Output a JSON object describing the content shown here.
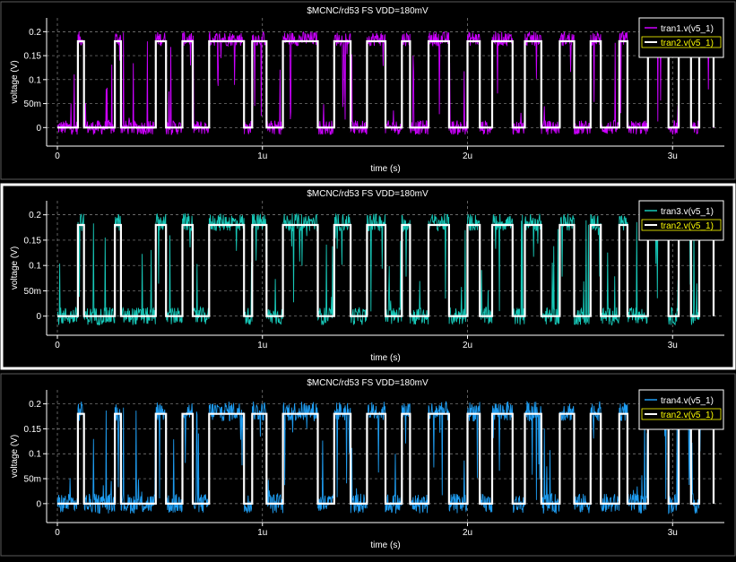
{
  "colors": {
    "background": "#000000",
    "axis": "#ffffff",
    "grid": "#8a8a8a",
    "selected_frame": "#ffffff",
    "frame": "#5a5a5a",
    "reference_trace": "#ffffff",
    "reference_legend_text": "#ffff00"
  },
  "chart_data": [
    {
      "type": "line",
      "title": "$MCNC/rd53 FS VDD=180mV",
      "xlabel": "time (s)",
      "ylabel": "voltage (V)",
      "xlim": [
        0,
        3.2e-06
      ],
      "ylim": [
        -0.02,
        0.21
      ],
      "x_ticks": [
        0,
        1e-06,
        2e-06,
        3e-06
      ],
      "x_tick_labels": [
        "0",
        "1u",
        "2u",
        "3u"
      ],
      "y_ticks": [
        0,
        0.05,
        0.1,
        0.15,
        0.2
      ],
      "y_tick_labels": [
        "0",
        "50m",
        "0.1",
        "0.15",
        "0.2"
      ],
      "grid": true,
      "legend_position": "top-right",
      "selected": false,
      "series": [
        {
          "name": "tran1.v(v5_1)",
          "color": "#cc00ff",
          "style": "noisy",
          "noise_amplitude": 0.03,
          "description_values": "noisy digital waveform switching between ~0 and ~0.19 V, same transitions as tran2"
        },
        {
          "name": "tran2.v(v5_1)",
          "color": "#ffffff",
          "style": "square",
          "high": 0.18,
          "low": 0,
          "transitions_us": [
            0.1,
            0.13,
            0.28,
            0.31,
            0.48,
            0.53,
            0.61,
            0.66,
            0.74,
            0.91,
            0.95,
            1.02,
            1.1,
            1.27,
            1.35,
            1.43,
            1.51,
            1.6,
            1.68,
            1.72,
            1.81,
            1.91,
            2.0,
            2.06,
            2.12,
            2.22,
            2.28,
            2.36,
            2.45,
            2.52,
            2.6,
            2.65,
            2.74,
            2.78,
            2.88,
            2.98,
            3.03,
            3.09,
            3.13,
            3.2
          ]
        }
      ]
    },
    {
      "type": "line",
      "title": "$MCNC/rd53 FS VDD=180mV",
      "xlabel": "time (s)",
      "ylabel": "voltage (V)",
      "xlim": [
        0,
        3.2e-06
      ],
      "ylim": [
        -0.02,
        0.21
      ],
      "x_ticks": [
        0,
        1e-06,
        2e-06,
        3e-06
      ],
      "x_tick_labels": [
        "0",
        "1u",
        "2u",
        "3u"
      ],
      "y_ticks": [
        0,
        0.05,
        0.1,
        0.15,
        0.2
      ],
      "y_tick_labels": [
        "0",
        "50m",
        "0.1",
        "0.15",
        "0.2"
      ],
      "grid": true,
      "legend_position": "top-right",
      "selected": true,
      "series": [
        {
          "name": "tran3.v(v5_1)",
          "color": "#17c8b8",
          "style": "noisy",
          "noise_amplitude": 0.035
        },
        {
          "name": "tran2.v(v5_1)",
          "color": "#ffffff",
          "style": "square",
          "high": 0.18,
          "low": 0,
          "transitions_us": [
            0.1,
            0.13,
            0.28,
            0.31,
            0.48,
            0.53,
            0.61,
            0.66,
            0.74,
            0.91,
            0.95,
            1.02,
            1.1,
            1.27,
            1.35,
            1.43,
            1.51,
            1.6,
            1.68,
            1.72,
            1.81,
            1.91,
            2.0,
            2.06,
            2.12,
            2.22,
            2.28,
            2.36,
            2.45,
            2.52,
            2.6,
            2.65,
            2.74,
            2.78,
            2.88,
            2.98,
            3.03,
            3.09,
            3.13,
            3.2
          ]
        }
      ]
    },
    {
      "type": "line",
      "title": "$MCNC/rd53 FS VDD=180mV",
      "xlabel": "time (s)",
      "ylabel": "voltage (V)",
      "xlim": [
        0,
        3.2e-06
      ],
      "ylim": [
        -0.02,
        0.21
      ],
      "x_ticks": [
        0,
        1e-06,
        2e-06,
        3e-06
      ],
      "x_tick_labels": [
        "0",
        "1u",
        "2u",
        "3u"
      ],
      "y_ticks": [
        0,
        0.05,
        0.1,
        0.15,
        0.2
      ],
      "y_tick_labels": [
        "0",
        "50m",
        "0.1",
        "0.15",
        "0.2"
      ],
      "grid": true,
      "legend_position": "top-right",
      "selected": false,
      "series": [
        {
          "name": "tran4.v(v5_1)",
          "color": "#1e9cf0",
          "style": "noisy",
          "noise_amplitude": 0.04
        },
        {
          "name": "tran2.v(v5_1)",
          "color": "#ffffff",
          "style": "square",
          "high": 0.18,
          "low": 0,
          "transitions_us": [
            0.1,
            0.13,
            0.28,
            0.31,
            0.48,
            0.53,
            0.61,
            0.66,
            0.74,
            0.91,
            0.95,
            1.02,
            1.1,
            1.27,
            1.35,
            1.43,
            1.51,
            1.6,
            1.68,
            1.72,
            1.81,
            1.91,
            2.0,
            2.06,
            2.12,
            2.22,
            2.28,
            2.36,
            2.45,
            2.52,
            2.6,
            2.65,
            2.74,
            2.78,
            2.88,
            2.98,
            3.03,
            3.09,
            3.13,
            3.2
          ]
        }
      ]
    }
  ]
}
